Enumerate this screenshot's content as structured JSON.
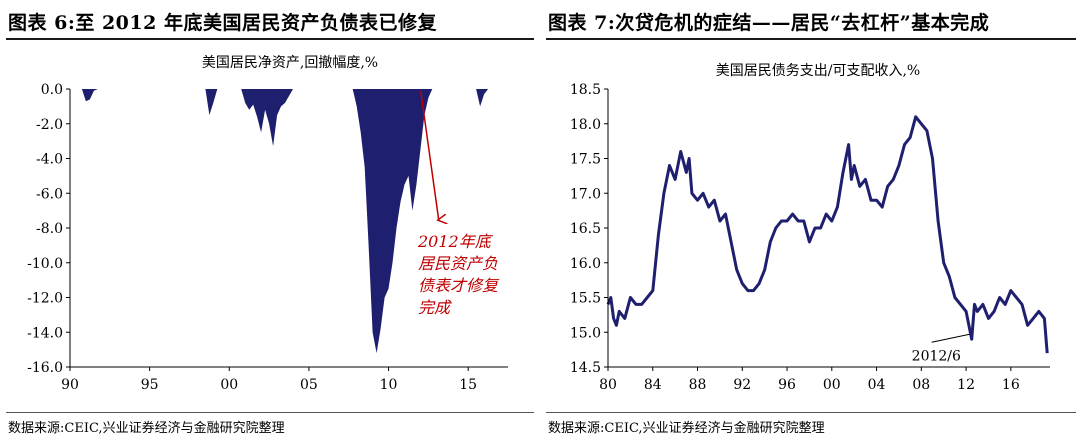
{
  "figures": [
    {
      "title": "图表 6:至 2012 年底美国居民资产负债表已修复",
      "source": "数据来源:CEIC,兴业证券经济与金融研究院整理"
    },
    {
      "title": "图表 7:次贷危机的症结——居民“去杠杆”基本完成",
      "source": "数据来源:CEIC,兴业证券经济与金融研究院整理"
    }
  ],
  "chart_data": [
    {
      "type": "area",
      "title": "美国居民净资产,回撤幅度,%",
      "xlabel": "",
      "ylabel": "",
      "xlim": [
        1990,
        2017.5
      ],
      "ylim": [
        -16,
        0
      ],
      "x_ticks": [
        "90",
        "95",
        "00",
        "05",
        "10",
        "15"
      ],
      "y_ticks": [
        "0.0",
        "-2.0",
        "-4.0",
        "-6.0",
        "-8.0",
        "-10.0",
        "-12.0",
        "-14.0",
        "-16.0"
      ],
      "fill_color": "#1f1f6f",
      "annotation": {
        "text_lines": [
          "2012年底",
          "居民资产负",
          "债表才修复",
          "完成"
        ],
        "color": "#c00000",
        "at_year": 2012.9
      },
      "series": [
        {
          "x": [
            1990,
            1990.75,
            1991,
            1991.25,
            1991.5,
            1991.75,
            1998.5,
            1998.75,
            1999,
            1999.25,
            1999.5,
            2000.75,
            2001,
            2001.25,
            2001.5,
            2001.75,
            2002,
            2002.25,
            2002.5,
            2002.75,
            2003,
            2003.25,
            2003.5,
            2003.75,
            2004,
            2004.25,
            2004.5,
            2004.75,
            2007.75,
            2008,
            2008.25,
            2008.5,
            2008.75,
            2009,
            2009.25,
            2009.5,
            2009.75,
            2010,
            2010.25,
            2010.5,
            2010.75,
            2011,
            2011.25,
            2011.5,
            2011.75,
            2012,
            2012.25,
            2012.5,
            2012.75,
            2013,
            2015.5,
            2015.75,
            2016,
            2016.25,
            2017.5
          ],
          "y": [
            0,
            0,
            -0.7,
            -0.6,
            -0.1,
            0,
            0,
            -1.5,
            -0.8,
            0,
            0,
            0,
            -0.8,
            -1.2,
            -0.9,
            -1.6,
            -2.5,
            -1.2,
            -2.0,
            -3.3,
            -1.5,
            -1.0,
            -0.8,
            -0.4,
            0,
            0,
            0,
            0,
            0,
            -1.0,
            -2.5,
            -4.5,
            -9.0,
            -14.0,
            -15.2,
            -13.8,
            -12.0,
            -11.5,
            -10.0,
            -8.0,
            -6.5,
            -5.5,
            -5.0,
            -7.0,
            -5.5,
            -3.5,
            -1.5,
            -0.5,
            0,
            0,
            0,
            -1.0,
            -0.3,
            0,
            0
          ]
        }
      ]
    },
    {
      "type": "line",
      "title": "美国居民债务支出/可支配收入,%",
      "xlabel": "",
      "ylabel": "",
      "xlim": [
        1980,
        2019.5
      ],
      "ylim": [
        14.5,
        18.5
      ],
      "x_ticks": [
        "80",
        "84",
        "88",
        "92",
        "96",
        "00",
        "04",
        "08",
        "12",
        "16"
      ],
      "y_ticks": [
        "18.5",
        "18.0",
        "17.5",
        "17.0",
        "16.5",
        "16.0",
        "15.5",
        "15.0",
        "14.5"
      ],
      "line_color": "#1f1f6f",
      "annotation": {
        "text": "2012/6",
        "x": 2012.5,
        "y": 15.0
      },
      "series": [
        {
          "x": [
            1980,
            1980.25,
            1980.5,
            1980.75,
            1981,
            1981.5,
            1982,
            1982.5,
            1983,
            1983.5,
            1984,
            1984.5,
            1985,
            1985.5,
            1986,
            1986.5,
            1987,
            1987.25,
            1987.5,
            1988,
            1988.5,
            1989,
            1989.5,
            1990,
            1990.5,
            1991,
            1991.5,
            1992,
            1992.5,
            1993,
            1993.5,
            1994,
            1994.5,
            1995,
            1995.5,
            1996,
            1996.5,
            1997,
            1997.5,
            1998,
            1998.5,
            1999,
            1999.5,
            2000,
            2000.5,
            2001,
            2001.5,
            2001.75,
            2002,
            2002.5,
            2003,
            2003.5,
            2004,
            2004.5,
            2005,
            2005.5,
            2006,
            2006.5,
            2007,
            2007.5,
            2008,
            2008.5,
            2009,
            2009.5,
            2010,
            2010.5,
            2011,
            2011.5,
            2012,
            2012.25,
            2012.5,
            2012.75,
            2013,
            2013.5,
            2014,
            2014.5,
            2015,
            2015.5,
            2016,
            2016.5,
            2017,
            2017.5,
            2018,
            2018.5,
            2019,
            2019.25
          ],
          "y": [
            15.4,
            15.5,
            15.2,
            15.1,
            15.3,
            15.2,
            15.5,
            15.4,
            15.4,
            15.5,
            15.6,
            16.4,
            17.0,
            17.4,
            17.2,
            17.6,
            17.3,
            17.5,
            17.0,
            16.9,
            17.0,
            16.8,
            16.9,
            16.6,
            16.7,
            16.3,
            15.9,
            15.7,
            15.6,
            15.6,
            15.7,
            15.9,
            16.3,
            16.5,
            16.6,
            16.6,
            16.7,
            16.6,
            16.6,
            16.3,
            16.5,
            16.5,
            16.7,
            16.6,
            16.8,
            17.3,
            17.7,
            17.2,
            17.4,
            17.1,
            17.2,
            16.9,
            16.9,
            16.8,
            17.1,
            17.2,
            17.4,
            17.7,
            17.8,
            18.1,
            18.0,
            17.9,
            17.5,
            16.6,
            16.0,
            15.8,
            15.5,
            15.4,
            15.3,
            15.1,
            14.9,
            15.4,
            15.3,
            15.4,
            15.2,
            15.3,
            15.5,
            15.4,
            15.6,
            15.5,
            15.4,
            15.1,
            15.2,
            15.3,
            15.2,
            14.7
          ]
        }
      ]
    }
  ]
}
